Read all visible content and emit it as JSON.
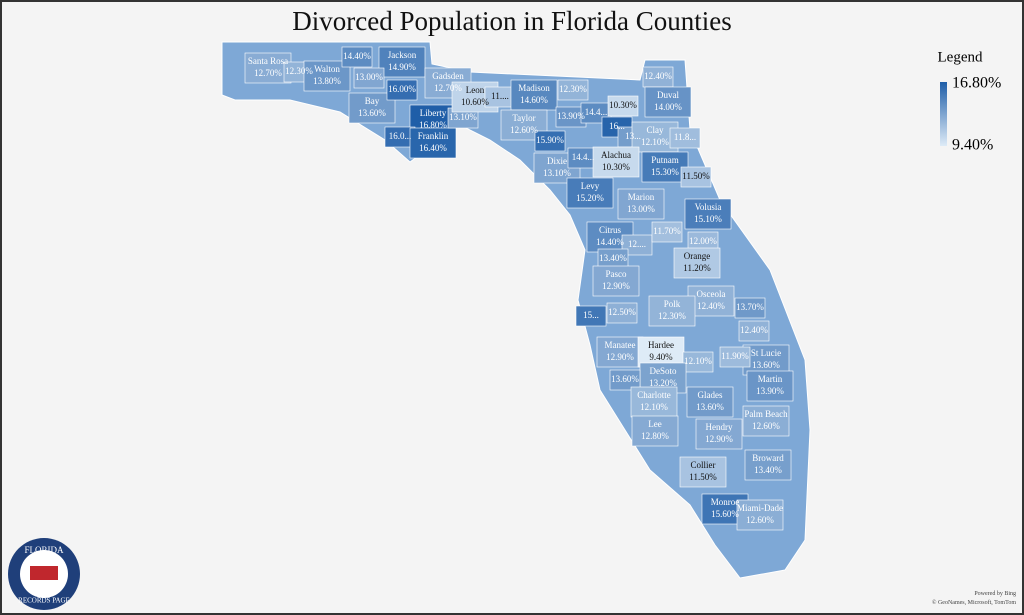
{
  "title": "Divorced Population in Florida Counties",
  "legend": {
    "title": "Legend",
    "max": {
      "value": 16.8,
      "label": "16.80%"
    },
    "min": {
      "value": 9.4,
      "label": "9.40%"
    }
  },
  "counties": [
    {
      "name": "Santa Rosa",
      "value": 12.7,
      "label": "12.70%"
    },
    {
      "value": 12.3,
      "label": "12.30%"
    },
    {
      "name": "Walton",
      "value": 13.8,
      "label": "13.80%"
    },
    {
      "value": 14.4,
      "label": "14.40%"
    },
    {
      "name": "Jackson",
      "value": 14.9,
      "label": "14.90%"
    },
    {
      "value": 13.0,
      "label": "13.00%"
    },
    {
      "name": "Bay",
      "value": 13.6,
      "label": "13.60%"
    },
    {
      "value": 16.0,
      "label": "16.00%"
    },
    {
      "name": "Liberty",
      "value": 16.8,
      "label": "16.80%"
    },
    {
      "value": 16.0,
      "label": "16.0..."
    },
    {
      "name": "Franklin",
      "value": 16.4,
      "label": "16.40%"
    },
    {
      "value": 13.1,
      "label": "13.10%"
    },
    {
      "name": "Gadsden",
      "value": 12.7,
      "label": "12.70%"
    },
    {
      "name": "Leon",
      "value": 10.6,
      "label": "10.60%"
    },
    {
      "value": 11.5,
      "label": "11...."
    },
    {
      "name": "Madison",
      "value": 14.6,
      "label": "14.60%"
    },
    {
      "value": 12.3,
      "label": "12.30%"
    },
    {
      "name": "Taylor",
      "value": 12.6,
      "label": "12.60%"
    },
    {
      "value": 13.9,
      "label": "13.90%"
    },
    {
      "value": 14.4,
      "label": "14.4..."
    },
    {
      "value": 10.3,
      "label": "10.30%"
    },
    {
      "value": 12.4,
      "label": "12.40%"
    },
    {
      "name": "Duval",
      "value": 14.0,
      "label": "14.00%"
    },
    {
      "value": 16.5,
      "label": "16..."
    },
    {
      "value": 13.5,
      "label": "13..."
    },
    {
      "name": "Clay",
      "value": 12.1,
      "label": "12.10%"
    },
    {
      "value": 11.8,
      "label": "11.8..."
    },
    {
      "value": 15.9,
      "label": "15.90%"
    },
    {
      "name": "Dixie",
      "value": 13.1,
      "label": "13.10%"
    },
    {
      "value": 14.4,
      "label": "14.4..."
    },
    {
      "name": "Alachua",
      "value": 10.3,
      "label": "10.30%"
    },
    {
      "name": "Putnam",
      "value": 15.3,
      "label": "15.30%"
    },
    {
      "value": 11.5,
      "label": "11.50%"
    },
    {
      "name": "Levy",
      "value": 15.2,
      "label": "15.20%"
    },
    {
      "name": "Marion",
      "value": 13.0,
      "label": "13.00%"
    },
    {
      "name": "Volusia",
      "value": 15.1,
      "label": "15.10%"
    },
    {
      "name": "Citrus",
      "value": 14.4,
      "label": "14.40%"
    },
    {
      "value": 12.5,
      "label": "12...."
    },
    {
      "value": 11.7,
      "label": "11.70%"
    },
    {
      "value": 12.0,
      "label": "12.00%"
    },
    {
      "name": "Orange",
      "value": 11.2,
      "label": "11.20%"
    },
    {
      "value": 13.4,
      "label": "13.40%"
    },
    {
      "name": "Pasco",
      "value": 12.9,
      "label": "12.90%"
    },
    {
      "name": "Osceola",
      "value": 12.4,
      "label": "12.40%"
    },
    {
      "value": 15.5,
      "label": "15..."
    },
    {
      "value": 12.5,
      "label": "12.50%"
    },
    {
      "name": "Polk",
      "value": 12.3,
      "label": "12.30%"
    },
    {
      "value": 13.7,
      "label": "13.70%"
    },
    {
      "value": 12.4,
      "label": "12.40%"
    },
    {
      "name": "Manatee",
      "value": 12.9,
      "label": "12.90%"
    },
    {
      "name": "Hardee",
      "value": 9.4,
      "label": "9.40%"
    },
    {
      "name": "St Lucie",
      "value": 13.6,
      "label": "13.60%"
    },
    {
      "value": 12.1,
      "label": "12.10%"
    },
    {
      "value": 11.9,
      "label": "11.90%"
    },
    {
      "name": "DeSoto",
      "value": 13.2,
      "label": "13.20%"
    },
    {
      "value": 13.6,
      "label": "13.60%"
    },
    {
      "name": "Martin",
      "value": 13.9,
      "label": "13.90%"
    },
    {
      "name": "Charlotte",
      "value": 12.1,
      "label": "12.10%"
    },
    {
      "name": "Glades",
      "value": 13.6,
      "label": "13.60%"
    },
    {
      "name": "Palm Beach",
      "value": 12.6,
      "label": "12.60%"
    },
    {
      "name": "Lee",
      "value": 12.8,
      "label": "12.80%"
    },
    {
      "name": "Hendry",
      "value": 12.9,
      "label": "12.90%"
    },
    {
      "name": "Broward",
      "value": 13.4,
      "label": "13.40%"
    },
    {
      "name": "Collier",
      "value": 11.5,
      "label": "11.50%"
    },
    {
      "name": "Monroe",
      "value": 15.6,
      "label": "15.60%"
    },
    {
      "name": "Miami-Dade",
      "value": 12.6,
      "label": "12.60%"
    }
  ],
  "attribution": {
    "line1": "Powered by Bing",
    "line2": "© GeoNames, Microsoft, TomTom"
  },
  "logo": {
    "top": "FLORIDA",
    "bottom": "RECORDS PAGE"
  }
}
